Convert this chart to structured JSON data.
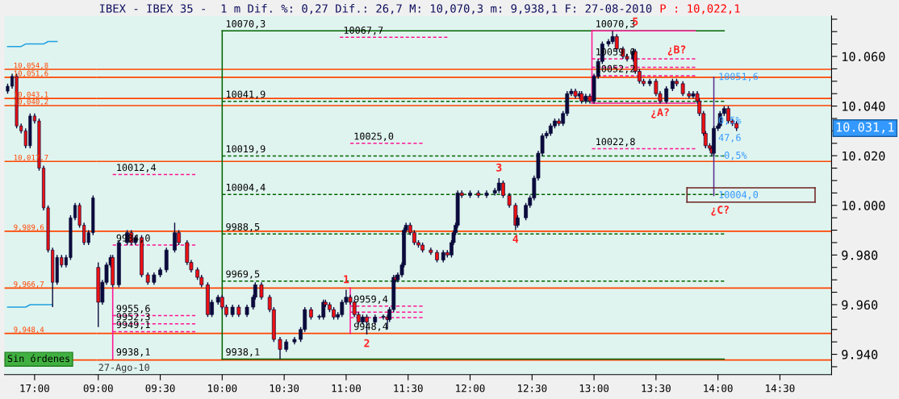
{
  "chart_data": [
    {
      "type": "candlestick",
      "categories": [
        null,
        null,
        null,
        null,
        null,
        null,
        "17:00",
        null,
        null,
        null,
        null,
        null,
        null,
        null,
        null,
        null,
        null,
        null,
        null,
        null
      ],
      "ohlc": [
        [
          10046,
          10049,
          10045,
          10048
        ],
        [
          10048,
          10053,
          10047,
          10052
        ],
        [
          10052,
          10053,
          10031,
          10032
        ],
        [
          10032,
          10033,
          10029,
          10030
        ],
        [
          10030,
          10031,
          10023,
          10024
        ],
        [
          10024,
          10037,
          10023,
          10036
        ],
        [
          10036,
          10037,
          10033,
          10034
        ],
        [
          10034,
          10035,
          10014,
          10015
        ],
        [
          10015,
          10016,
          9998,
          9999
        ],
        [
          9999,
          10000,
          9981,
          9982
        ],
        [
          9982,
          9983,
          9959,
          9969
        ],
        [
          9969,
          9980,
          9968,
          9979
        ],
        [
          9979,
          9980,
          9975,
          9976
        ],
        [
          9976,
          9980,
          9975,
          9979
        ],
        [
          9979,
          9996,
          9978,
          9995
        ],
        [
          9995,
          10001,
          9994,
          10000
        ],
        [
          10000,
          10001,
          9991,
          9992
        ],
        [
          9992,
          9993,
          9984,
          9985
        ],
        [
          9985,
          9990,
          9984,
          9989
        ],
        [
          9989,
          10004,
          9988,
          10003
        ]
      ],
      "series": [
        {
          "type": "line",
          "color": "#1ea0e0",
          "line_style": "solid",
          "values": [
            10064,
            10064,
            10064,
            10064,
            10065,
            10065,
            10065,
            10065,
            10065,
            10066,
            10066,
            10066,
            null,
            null,
            null,
            null,
            null,
            null,
            null,
            null
          ]
        },
        {
          "type": "line",
          "color": "#1ea0e0",
          "line_style": "solid",
          "values": [
            9959,
            9959,
            9959,
            9959,
            9959,
            9960,
            9960,
            9960,
            9960,
            9960,
            9960,
            null,
            null,
            null,
            null,
            null,
            null,
            null,
            null,
            null
          ]
        }
      ],
      "ref_lines": [
        {
          "axis": "y",
          "value": 10054.8,
          "label": "10,054,8",
          "color": "#ff4500",
          "line_style": "solid"
        },
        {
          "axis": "y",
          "value": 10051.6,
          "label": "10,051,6",
          "color": "#ff4500",
          "line_style": "solid"
        },
        {
          "axis": "y",
          "value": 10043.1,
          "label": "10,043,1",
          "color": "#ff4500",
          "line_style": "solid"
        },
        {
          "axis": "y",
          "value": 10040.2,
          "label": "10,040,2",
          "color": "#ff4500",
          "line_style": "solid"
        },
        {
          "axis": "y",
          "value": 10017.7,
          "label": "10,017,7",
          "color": "#ff4500",
          "line_style": "solid"
        },
        {
          "axis": "y",
          "value": 9989.6,
          "label": "9,989,6",
          "color": "#ff4500",
          "line_style": "solid"
        },
        {
          "axis": "y",
          "value": 9966.7,
          "label": "9,966,7",
          "color": "#ff4500",
          "line_style": "solid"
        },
        {
          "axis": "y",
          "value": 9948.4,
          "label": "9,948,4",
          "color": "#ff4500",
          "line_style": "solid"
        },
        {
          "axis": "y",
          "value": 9937.7,
          "label": null,
          "color": "#ff4500",
          "line_style": "solid"
        }
      ],
      "annotations": [
        "Sin órdenes"
      ],
      "ylim": [
        9931.8,
        10076.3
      ],
      "tick_labels": "x",
      "grid": false,
      "legend": false
    },
    {
      "type": "candlestick",
      "title": "IBEX - IBEX 35 -  1 m Dif. %: 0,27 Dif.: 26,7 M: 10,070,3 m: 9,938,1 F: 27-08-2010",
      "subtitle": "P : 10,022,1",
      "x": [
        "2010-08-27T09:00",
        "2010-08-27T09:02",
        "2010-08-27T09:04",
        "2010-08-27T09:06",
        "2010-08-27T09:07",
        "2010-08-27T09:10",
        "2010-08-27T09:14",
        "2010-08-27T09:16",
        "2010-08-27T09:18",
        "2010-08-27T09:21",
        "2010-08-27T09:24",
        "2010-08-27T09:27",
        "2010-08-27T09:30",
        "2010-08-27T09:33",
        "2010-08-27T09:37",
        "2010-08-27T09:39",
        "2010-08-27T09:43",
        "2010-08-27T09:45",
        "2010-08-27T09:48",
        "2010-08-27T09:50",
        "2010-08-27T09:53",
        "2010-08-27T09:55",
        "2010-08-27T09:58",
        "2010-08-27T10:00",
        "2010-08-27T10:02",
        "2010-08-27T10:05",
        "2010-08-27T10:08",
        "2010-08-27T10:12",
        "2010-08-27T10:15",
        "2010-08-27T10:16",
        "2010-08-27T10:19",
        "2010-08-27T10:23",
        "2010-08-27T10:25",
        "2010-08-27T10:28",
        "2010-08-27T10:31",
        "2010-08-27T10:35",
        "2010-08-27T10:38",
        "2010-08-27T10:40",
        "2010-08-27T10:43",
        "2010-08-27T10:47",
        "2010-08-27T10:49",
        "2010-08-27T10:50",
        "2010-08-27T10:52",
        "2010-08-27T10:54",
        "2010-08-27T10:56",
        "2010-08-27T10:58",
        "2010-08-27T11:00",
        "2010-08-27T11:02",
        "2010-08-27T11:04",
        "2010-08-27T11:06",
        "2010-08-27T11:08",
        "2010-08-27T11:10",
        "2010-08-27T11:14",
        "2010-08-27T11:18",
        "2010-08-27T11:20",
        "2010-08-27T11:21",
        "2010-08-27T11:23",
        "2010-08-27T11:24",
        "2010-08-27T11:25",
        "2010-08-27T11:27",
        "2010-08-27T11:28",
        "2010-08-27T11:29",
        "2010-08-27T11:31",
        "2010-08-27T11:33",
        "2010-08-27T11:35",
        "2010-08-27T11:37",
        "2010-08-27T11:41",
        "2010-08-27T11:44",
        "2010-08-27T11:47",
        "2010-08-27T11:49",
        "2010-08-27T11:51",
        "2010-08-27T11:52",
        "2010-08-27T11:53",
        "2010-08-27T11:54",
        "2010-08-27T11:56",
        "2010-08-27T12:00",
        "2010-08-27T12:04",
        "2010-08-27T12:08",
        "2010-08-27T12:12",
        "2010-08-27T12:14",
        "2010-08-27T12:16",
        "2010-08-27T12:19",
        "2010-08-27T12:22",
        "2010-08-27T12:23",
        "2010-08-27T12:27",
        "2010-08-27T12:29",
        "2010-08-27T12:31",
        "2010-08-27T12:33",
        "2010-08-27T12:35",
        "2010-08-27T12:37",
        "2010-08-27T12:39",
        "2010-08-27T12:41",
        "2010-08-27T12:43",
        "2010-08-27T12:45",
        "2010-08-27T12:47",
        "2010-08-27T12:49",
        "2010-08-27T12:51",
        "2010-08-27T12:53",
        "2010-08-27T12:54",
        "2010-08-27T12:56",
        "2010-08-27T12:58",
        "2010-08-27T13:00",
        "2010-08-27T13:02",
        "2010-08-27T13:04",
        "2010-08-27T13:07",
        "2010-08-27T13:09",
        "2010-08-27T13:11",
        "2010-08-27T13:14",
        "2010-08-27T13:16",
        "2010-08-27T13:19",
        "2010-08-27T13:20",
        "2010-08-27T13:22",
        "2010-08-27T13:24",
        "2010-08-27T13:27",
        "2010-08-27T13:30",
        "2010-08-27T13:32",
        "2010-08-27T13:35",
        "2010-08-27T13:38",
        "2010-08-27T13:40",
        "2010-08-27T13:43",
        "2010-08-27T13:46",
        "2010-08-27T13:48",
        "2010-08-27T13:50",
        "2010-08-27T13:51",
        "2010-08-27T13:53",
        "2010-08-27T13:54",
        "2010-08-27T13:56",
        "2010-08-27T13:57",
        "2010-08-27T13:58",
        "2010-08-27T14:00",
        "2010-08-27T14:01",
        "2010-08-27T14:03",
        "2010-08-27T14:05",
        "2010-08-27T14:07",
        "2010-08-27T14:09"
      ],
      "ohlc": [
        [
          9975,
          9977,
          9951,
          9961
        ],
        [
          9961,
          9970,
          9960,
          9969
        ],
        [
          9969,
          9977,
          9968,
          9976
        ],
        [
          9976,
          9980,
          9975,
          9979
        ],
        [
          9979,
          9980,
          9967,
          9968
        ],
        [
          9968,
          9986,
          9967,
          9985
        ],
        [
          9985,
          9990,
          9984,
          9989
        ],
        [
          9989,
          9990,
          9984,
          9985
        ],
        [
          9985,
          9988,
          9984,
          9987
        ],
        [
          9987,
          9988,
          9971,
          9972
        ],
        [
          9972,
          9973,
          9968,
          9969
        ],
        [
          9969,
          9973,
          9968,
          9972
        ],
        [
          9972,
          9975,
          9971,
          9974
        ],
        [
          9974,
          9983,
          9973,
          9982
        ],
        [
          9982,
          9993,
          9981,
          9989
        ],
        [
          9989,
          9990,
          9984,
          9985
        ],
        [
          9985,
          9986,
          9976,
          9977
        ],
        [
          9977,
          9978,
          9973,
          9974
        ],
        [
          9974,
          9975,
          9970,
          9971
        ],
        [
          9971,
          9972,
          9967,
          9968
        ],
        [
          9968,
          9969,
          9955,
          9956
        ],
        [
          9956,
          9962,
          9955,
          9961
        ],
        [
          9961,
          9964,
          9960,
          9963
        ],
        [
          9963,
          9964,
          9958,
          9959
        ],
        [
          9959,
          9960,
          9955,
          9956
        ],
        [
          9956,
          9960,
          9955,
          9959
        ],
        [
          9959,
          9960,
          9955,
          9956
        ],
        [
          9956,
          9960,
          9955,
          9959
        ],
        [
          9959,
          9964,
          9958,
          9963
        ],
        [
          9963,
          9969,
          9962,
          9968
        ],
        [
          9968,
          9969,
          9962,
          9963
        ],
        [
          9963,
          9964,
          9957,
          9958
        ],
        [
          9958,
          9959,
          9945,
          9946
        ],
        [
          9946,
          9947,
          9938.1,
          9942
        ],
        [
          9942,
          9946,
          9941,
          9945
        ],
        [
          9945,
          9947,
          9944,
          9946
        ],
        [
          9946,
          9951,
          9945,
          9950
        ],
        [
          9950,
          9959,
          9949,
          9958
        ],
        [
          9958,
          9959,
          9954,
          9955
        ],
        [
          9955,
          9956,
          9954,
          9955
        ],
        [
          9955,
          9962,
          9954,
          9961
        ],
        [
          9961,
          9962,
          9959,
          9960
        ],
        [
          9960,
          9961,
          9957,
          9958
        ],
        [
          9958,
          9959,
          9954,
          9955
        ],
        [
          9955,
          9957,
          9954,
          9956
        ],
        [
          9956,
          9962,
          9955,
          9961
        ],
        [
          9961,
          9966,
          9960,
          9963
        ],
        [
          9963,
          9964,
          9960,
          9961
        ],
        [
          9961,
          9962,
          9955,
          9956
        ],
        [
          9956,
          9957,
          9952,
          9953
        ],
        [
          9953,
          9956,
          9952,
          9955
        ],
        [
          9955,
          9956,
          9948,
          9953
        ],
        [
          9953,
          9956,
          9952,
          9955
        ],
        [
          9955,
          9956,
          9954,
          9955
        ],
        [
          9955,
          9956,
          9950,
          9954
        ],
        [
          9954,
          9959,
          9953,
          9958
        ],
        [
          9958,
          9972,
          9957,
          9971
        ],
        [
          9971,
          9972,
          9969,
          9970
        ],
        [
          9970,
          9973,
          9969,
          9972
        ],
        [
          9972,
          9977,
          9971,
          9976
        ],
        [
          9976,
          9991,
          9975,
          9990
        ],
        [
          9990,
          9993,
          9989,
          9992
        ],
        [
          9992,
          9993,
          9988,
          9989
        ],
        [
          9989,
          9990,
          9984,
          9985
        ],
        [
          9985,
          9986,
          9983,
          9984
        ],
        [
          9984,
          9985,
          9981,
          9982
        ],
        [
          9982,
          9983,
          9980,
          9981
        ],
        [
          9981,
          9982,
          9977,
          9978
        ],
        [
          9978,
          9982,
          9977,
          9981
        ],
        [
          9981,
          9982,
          9979,
          9980
        ],
        [
          9980,
          9986,
          9979,
          9985
        ],
        [
          9985,
          9990,
          9984,
          9989
        ],
        [
          9989,
          9993,
          9988,
          9992
        ],
        [
          9992,
          10006,
          9991,
          10005
        ],
        [
          10005,
          10006,
          10003,
          10004
        ],
        [
          10004,
          10006,
          10003,
          10005
        ],
        [
          10005,
          10006,
          10003,
          10004
        ],
        [
          10004,
          10006,
          10003,
          10005
        ],
        [
          10005,
          10007,
          10004,
          10006
        ],
        [
          10006,
          10011,
          10005,
          10009
        ],
        [
          10009,
          10010,
          10003,
          10004
        ],
        [
          10004,
          10005,
          9999,
          10000
        ],
        [
          10000,
          10001,
          9990,
          9992
        ],
        [
          9992,
          9996,
          9991,
          9995
        ],
        [
          9995,
          10001,
          9994,
          10000
        ],
        [
          10000,
          10004,
          9999,
          10003
        ],
        [
          10003,
          10012,
          10002,
          10011
        ],
        [
          10011,
          10022,
          10010,
          10021
        ],
        [
          10021,
          10029,
          10020,
          10028
        ],
        [
          10028,
          10030,
          10027,
          10029
        ],
        [
          10029,
          10033,
          10028,
          10032
        ],
        [
          10032,
          10035,
          10031,
          10034
        ],
        [
          10034,
          10035,
          10032,
          10033
        ],
        [
          10033,
          10038,
          10032,
          10037
        ],
        [
          10037,
          10046,
          10036,
          10045
        ],
        [
          10045,
          10047,
          10044,
          10046
        ],
        [
          10046,
          10047,
          10043,
          10044
        ],
        [
          10044,
          10046,
          10043,
          10045
        ],
        [
          10045,
          10046,
          10041,
          10042
        ],
        [
          10042,
          10045,
          10041,
          10044
        ],
        [
          10044,
          10045,
          10041,
          10042
        ],
        [
          10042,
          10053,
          10041,
          10052
        ],
        [
          10052,
          10059,
          10051,
          10058
        ],
        [
          10058,
          10066,
          10057,
          10065
        ],
        [
          10065,
          10067,
          10064,
          10066
        ],
        [
          10066,
          10070.3,
          10065,
          10068
        ],
        [
          10068,
          10069,
          10062,
          10063
        ],
        [
          10063,
          10064,
          10059,
          10060
        ],
        [
          10060,
          10061,
          10058,
          10059
        ],
        [
          10059,
          10063,
          10058,
          10062
        ],
        [
          10062,
          10063,
          10053,
          10054
        ],
        [
          10054,
          10055,
          10049,
          10050
        ],
        [
          10050,
          10051,
          10048,
          10049
        ],
        [
          10049,
          10051,
          10048,
          10050
        ],
        [
          10050,
          10051,
          10044,
          10045
        ],
        [
          10045,
          10046,
          10041,
          10042
        ],
        [
          10042,
          10048,
          10041,
          10047
        ],
        [
          10047,
          10051,
          10046,
          10050
        ],
        [
          10050,
          10051,
          10048,
          10049
        ],
        [
          10049,
          10050,
          10044,
          10045
        ],
        [
          10045,
          10046,
          10043,
          10044
        ],
        [
          10044,
          10046,
          10043,
          10045
        ],
        [
          10045,
          10046,
          10041,
          10042
        ],
        [
          10042,
          10043,
          10036,
          10037
        ],
        [
          10037,
          10038,
          10028,
          10029
        ],
        [
          10029,
          10030,
          10023,
          10024
        ],
        [
          10024,
          10025,
          10022,
          10023
        ],
        [
          10023,
          10024,
          10020,
          10021
        ],
        [
          10021,
          10032,
          10020,
          10031
        ],
        [
          10031,
          10033,
          10030,
          10032
        ],
        [
          10032,
          10038,
          10031,
          10037
        ],
        [
          10037,
          10040,
          10036,
          10039
        ],
        [
          10039,
          10040,
          10033,
          10034
        ],
        [
          10034,
          10035,
          10032,
          10033
        ],
        [
          10033,
          10034,
          10030,
          10031.1
        ]
      ],
      "series": [
        {
          "type": "line",
          "color": "#006400",
          "line_style": "solid",
          "x": [
            "2010-08-27T10:00",
            "2010-08-27T14:03"
          ],
          "values": [
            10070.3,
            10070.3
          ]
        },
        {
          "type": "line",
          "color": "#006400",
          "line_style": "solid",
          "x": [
            "2010-08-27T10:00",
            "2010-08-27T14:03"
          ],
          "values": [
            9938.1,
            9938.1
          ]
        },
        {
          "type": "line",
          "color": "#006400",
          "line_style": "solid",
          "x": [
            "2010-08-27T10:00",
            "2010-08-27T10:00"
          ],
          "values": [
            9938.1,
            10070.3
          ]
        },
        {
          "type": "line",
          "color": "#006400",
          "line_style": "dashed",
          "x": [
            "2010-08-27T10:00",
            "2010-08-27T14:03"
          ],
          "values": [
            10041.9,
            10041.9
          ]
        },
        {
          "type": "line",
          "color": "#006400",
          "line_style": "dashed",
          "x": [
            "2010-08-27T10:00",
            "2010-08-27T14:03"
          ],
          "values": [
            10019.9,
            10019.9
          ]
        },
        {
          "type": "line",
          "color": "#006400",
          "line_style": "dashed",
          "x": [
            "2010-08-27T10:00",
            "2010-08-27T14:03"
          ],
          "values": [
            10004.4,
            10004.4
          ]
        },
        {
          "type": "line",
          "color": "#006400",
          "line_style": "dashed",
          "x": [
            "2010-08-27T10:00",
            "2010-08-27T14:03"
          ],
          "values": [
            9988.5,
            9988.5
          ]
        },
        {
          "type": "line",
          "color": "#006400",
          "line_style": "dashed",
          "x": [
            "2010-08-27T10:00",
            "2010-08-27T14:03"
          ],
          "values": [
            9969.5,
            9969.5
          ]
        },
        {
          "type": "line",
          "color": "#ff1493",
          "line_style": "solid",
          "x": [
            "2010-08-27T09:07",
            "2010-08-27T09:07"
          ],
          "values": [
            9938.1,
            9966.7
          ]
        },
        {
          "type": "line",
          "color": "#ff1493",
          "line_style": "dashed",
          "x": [
            "2010-08-27T09:07",
            "2010-08-27T09:47"
          ],
          "values": [
            10012.4,
            10012.4
          ]
        },
        {
          "type": "line",
          "color": "#ff1493",
          "line_style": "dashed",
          "x": [
            "2010-08-27T09:07",
            "2010-08-27T09:47"
          ],
          "values": [
            9984.0,
            9984.0
          ]
        },
        {
          "type": "line",
          "color": "#ff1493",
          "line_style": "dashed",
          "x": [
            "2010-08-27T09:07",
            "2010-08-27T09:47"
          ],
          "values": [
            9955.6,
            9955.6
          ]
        },
        {
          "type": "line",
          "color": "#ff1493",
          "line_style": "dashed",
          "x": [
            "2010-08-27T09:07",
            "2010-08-27T09:47"
          ],
          "values": [
            9952.3,
            9952.3
          ]
        },
        {
          "type": "line",
          "color": "#ff1493",
          "line_style": "dashed",
          "x": [
            "2010-08-27T09:07",
            "2010-08-27T09:47"
          ],
          "values": [
            9949.1,
            9949.1
          ]
        },
        {
          "type": "line",
          "color": "#ff1493",
          "line_style": "dashed",
          "x": [
            "2010-08-27T10:57",
            "2010-08-27T11:49"
          ],
          "values": [
            10067.7,
            10067.7
          ]
        },
        {
          "type": "line",
          "color": "#ff1493",
          "line_style": "dashed",
          "x": [
            "2010-08-27T11:02",
            "2010-08-27T11:37"
          ],
          "values": [
            10025.0,
            10025.0
          ]
        },
        {
          "type": "line",
          "color": "#ff1493",
          "line_style": "solid",
          "x": [
            "2010-08-27T11:02",
            "2010-08-27T11:02"
          ],
          "values": [
            9948.4,
            9966.7
          ]
        },
        {
          "type": "line",
          "color": "#ff1493",
          "line_style": "dashed",
          "x": [
            "2010-08-27T11:02",
            "2010-08-27T11:37"
          ],
          "values": [
            9959.4,
            9959.4
          ]
        },
        {
          "type": "line",
          "color": "#ff1493",
          "line_style": "dashed",
          "x": [
            "2010-08-27T11:02",
            "2010-08-27T11:37"
          ],
          "values": [
            9957.0,
            9957.0
          ]
        },
        {
          "type": "line",
          "color": "#ff1493",
          "line_style": "dashed",
          "x": [
            "2010-08-27T11:02",
            "2010-08-27T11:37"
          ],
          "values": [
            9954.8,
            9954.8
          ]
        },
        {
          "type": "line",
          "color": "#ff1493",
          "line_style": "solid",
          "x": [
            "2010-08-27T12:59",
            "2010-08-27T12:59"
          ],
          "values": [
            10041.2,
            10070.3
          ]
        },
        {
          "type": "line",
          "color": "#ff1493",
          "line_style": "solid",
          "x": [
            "2010-08-27T12:59",
            "2010-08-27T13:49"
          ],
          "values": [
            10070.3,
            10070.3
          ]
        },
        {
          "type": "line",
          "color": "#ff1493",
          "line_style": "solid",
          "x": [
            "2010-08-27T12:59",
            "2010-08-27T13:49"
          ],
          "values": [
            10041.2,
            10041.2
          ]
        },
        {
          "type": "line",
          "color": "#ff1493",
          "line_style": "dashed",
          "x": [
            "2010-08-27T12:59",
            "2010-08-27T13:49"
          ],
          "values": [
            10059.0,
            10059.0
          ]
        },
        {
          "type": "line",
          "color": "#ff1493",
          "line_style": "dashed",
          "x": [
            "2010-08-27T12:59",
            "2010-08-27T13:49"
          ],
          "values": [
            10055.6,
            10055.6
          ]
        },
        {
          "type": "line",
          "color": "#ff1493",
          "line_style": "dashed",
          "x": [
            "2010-08-27T12:59",
            "2010-08-27T13:49"
          ],
          "values": [
            10052.2,
            10052.2
          ]
        },
        {
          "type": "line",
          "color": "#ff1493",
          "line_style": "dashed",
          "x": [
            "2010-08-27T12:59",
            "2010-08-27T13:49"
          ],
          "values": [
            10022.8,
            10022.8
          ]
        },
        {
          "type": "line",
          "color": "#5a2d91",
          "line_style": "solid",
          "x": [
            "2010-08-27T13:58",
            "2010-08-27T13:58"
          ],
          "values": [
            10004.0,
            10051.6
          ]
        },
        {
          "type": "line",
          "color": "#6b2020",
          "line_style": "solid",
          "x": [
            "2010-08-27T13:45",
            "2010-08-27T14:47"
          ],
          "values": [
            10001.3,
            10001.3
          ]
        },
        {
          "type": "line",
          "color": "#6b2020",
          "line_style": "solid",
          "x": [
            "2010-08-27T14:47",
            "2010-08-27T14:47"
          ],
          "values": [
            10001.3,
            10007.1
          ]
        },
        {
          "type": "line",
          "color": "#6b2020",
          "line_style": "solid",
          "x": [
            "2010-08-27T13:45",
            "2010-08-27T14:47"
          ],
          "values": [
            10007.1,
            10007.1
          ]
        },
        {
          "type": "line",
          "color": "#6b2020",
          "line_style": "solid",
          "x": [
            "2010-08-27T13:45",
            "2010-08-27T13:45"
          ],
          "values": [
            10001.3,
            10007.1
          ]
        }
      ],
      "ref_lines": [
        {
          "axis": "y",
          "value": 10054.8,
          "label": null,
          "color": "#ff4500",
          "line_style": "solid"
        },
        {
          "axis": "y",
          "value": 10051.6,
          "label": null,
          "color": "#ff4500",
          "line_style": "solid"
        },
        {
          "axis": "y",
          "value": 10043.1,
          "label": null,
          "color": "#ff4500",
          "line_style": "solid"
        },
        {
          "axis": "y",
          "value": 10040.2,
          "label": null,
          "color": "#ff4500",
          "line_style": "solid"
        },
        {
          "axis": "y",
          "value": 10017.7,
          "label": null,
          "color": "#ff4500",
          "line_style": "solid"
        },
        {
          "axis": "y",
          "value": 9989.6,
          "label": null,
          "color": "#ff4500",
          "line_style": "solid"
        },
        {
          "axis": "y",
          "value": 9966.7,
          "label": null,
          "color": "#ff4500",
          "line_style": "solid"
        },
        {
          "axis": "y",
          "value": 9948.4,
          "label": null,
          "color": "#ff4500",
          "line_style": "solid"
        },
        {
          "axis": "y",
          "value": 9937.7,
          "label": null,
          "color": "#ff4500",
          "line_style": "solid"
        }
      ],
      "annotations": [
        {
          "text": "10070,3",
          "x": "2010-08-27T10:00",
          "y": 10070.3
        },
        {
          "text": "10041,9",
          "x": "2010-08-27T10:00",
          "y": 10041.9
        },
        {
          "text": "10019,9",
          "x": "2010-08-27T10:00",
          "y": 10019.9
        },
        {
          "text": "10004,4",
          "x": "2010-08-27T10:00",
          "y": 10004.4
        },
        {
          "text": "9988,5",
          "x": "2010-08-27T10:00",
          "y": 9988.5
        },
        {
          "text": "9969,5",
          "x": "2010-08-27T10:00",
          "y": 9969.5
        },
        {
          "text": "9938,1",
          "x": "2010-08-27T10:00",
          "y": 9938.1
        },
        {
          "text": "10012,4",
          "x": "2010-08-27T09:07",
          "y": 10012.4
        },
        {
          "text": "9984,0",
          "x": "2010-08-27T09:07",
          "y": 9984.0
        },
        {
          "text": "9955,6",
          "x": "2010-08-27T09:07",
          "y": 9955.6
        },
        {
          "text": "9952,3",
          "x": "2010-08-27T09:07",
          "y": 9952.3
        },
        {
          "text": "9949,1",
          "x": "2010-08-27T09:07",
          "y": 9949.1
        },
        {
          "text": "9938,1",
          "x": "2010-08-27T09:07",
          "y": 9938.1
        },
        {
          "text": "10067,7",
          "x": "2010-08-27T10:57",
          "y": 10067.7
        },
        {
          "text": "10025,0",
          "x": "2010-08-27T11:02",
          "y": 10025.0
        },
        {
          "text": "9959,4",
          "x": "2010-08-27T11:02",
          "y": 9959.4
        },
        {
          "text": "9948,4",
          "x": "2010-08-27T11:02",
          "y": 9948.4
        },
        {
          "text": "10070,3",
          "x": "2010-08-27T12:59",
          "y": 10070.3
        },
        {
          "text": "10059,0",
          "x": "2010-08-27T12:59",
          "y": 10059.0
        },
        {
          "text": "10052,2",
          "x": "2010-08-27T12:59",
          "y": 10052.2
        },
        {
          "text": "10022,8",
          "x": "2010-08-27T12:59",
          "y": 10022.8
        },
        {
          "text": "10051,6",
          "x": "2010-08-27T13:58",
          "y": 10051.6
        },
        {
          "text": "10004,0",
          "x": "2010-08-27T13:58",
          "y": 10004.0
        },
        {
          "text": "47,6",
          "x": "2010-08-27T13:58",
          "y": 10027
        },
        {
          "text": "0,5%",
          "x": "2010-08-27T13:58",
          "y": 10034
        },
        {
          "text": "-0,5%",
          "x": "2010-08-27T13:58",
          "y": 10019.9
        },
        {
          "text": "1",
          "x": "2010-08-27T11:00",
          "y": 9966
        },
        {
          "text": "2",
          "x": "2010-08-27T11:10",
          "y": 9948
        },
        {
          "text": "3",
          "x": "2010-08-27T12:14",
          "y": 10011
        },
        {
          "text": "4",
          "x": "2010-08-27T12:22",
          "y": 9990
        },
        {
          "text": "5",
          "x": "2010-08-27T13:20",
          "y": 10070.3
        },
        {
          "text": "¿A?",
          "x": "2010-08-27T13:32",
          "y": 10041
        },
        {
          "text": "¿B?",
          "x": "2010-08-27T13:40",
          "y": 10059.0
        },
        {
          "text": "¿C?",
          "x": "2010-08-27T14:01",
          "y": 10001.3
        },
        "27-Ago-10",
        "10.031,1"
      ],
      "xlim": [
        "2010-08-27T08:59",
        "2010-08-27T14:55"
      ],
      "xticks": [
        {
          "value": "2010-08-27T09:00",
          "label": "09:00"
        },
        {
          "value": "2010-08-27T09:30",
          "label": "09:30"
        },
        {
          "value": "2010-08-27T10:00",
          "label": "10:00"
        },
        {
          "value": "2010-08-27T10:30",
          "label": "10:30"
        },
        {
          "value": "2010-08-27T11:00",
          "label": "11:00"
        },
        {
          "value": "2010-08-27T11:30",
          "label": "11:30"
        },
        {
          "value": "2010-08-27T12:00",
          "label": "12:00"
        },
        {
          "value": "2010-08-27T12:30",
          "label": "12:30"
        },
        {
          "value": "2010-08-27T13:00",
          "label": "13:00"
        },
        {
          "value": "2010-08-27T13:30",
          "label": "13:30"
        },
        {
          "value": "2010-08-27T14:00",
          "label": "14:00"
        },
        {
          "value": "2010-08-27T14:30",
          "label": "14:30"
        }
      ],
      "ylim": [
        9931.8,
        10076.3
      ],
      "yticks": [
        {
          "value": 9935,
          "label": null
        },
        {
          "value": 9940,
          "label": "9.940"
        },
        {
          "value": 9945,
          "label": null
        },
        {
          "value": 9950,
          "label": null
        },
        {
          "value": 9955,
          "label": null
        },
        {
          "value": 9960,
          "label": "9.960"
        },
        {
          "value": 9965,
          "label": null
        },
        {
          "value": 9970,
          "label": null
        },
        {
          "value": 9975,
          "label": null
        },
        {
          "value": 9980,
          "label": "9.980"
        },
        {
          "value": 9985,
          "label": null
        },
        {
          "value": 9990,
          "label": null
        },
        {
          "value": 9995,
          "label": null
        },
        {
          "value": 10000,
          "label": "10.000"
        },
        {
          "value": 10005,
          "label": null
        },
        {
          "value": 10010,
          "label": null
        },
        {
          "value": 10015,
          "label": null
        },
        {
          "value": 10020,
          "label": "10.020"
        },
        {
          "value": 10025,
          "label": null
        },
        {
          "value": 10030,
          "label": null
        },
        {
          "value": 10035,
          "label": null
        },
        {
          "value": 10040,
          "label": "10.040"
        },
        {
          "value": 10045,
          "label": null
        },
        {
          "value": 10050,
          "label": null
        },
        {
          "value": 10055,
          "label": null
        },
        {
          "value": 10060,
          "label": "10.060"
        },
        {
          "value": 10065,
          "label": null
        },
        {
          "value": 10070,
          "label": null
        },
        {
          "value": 10075,
          "label": null
        }
      ],
      "grid": false,
      "legend": false
    }
  ]
}
